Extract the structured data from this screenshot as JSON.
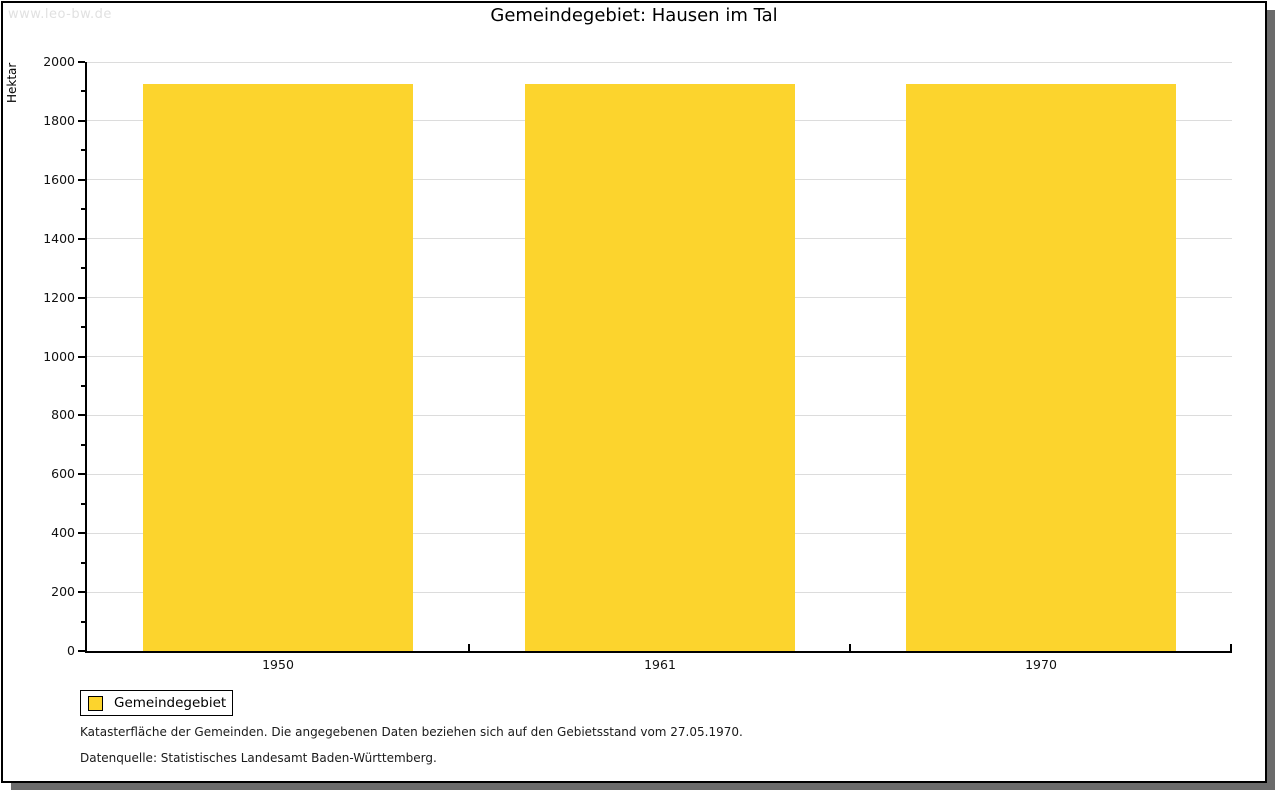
{
  "watermark": "www.leo-bw.de",
  "title": "Gemeindegebiet: Hausen im Tal",
  "chart_data": {
    "type": "bar",
    "title": "Gemeindegebiet: Hausen im Tal",
    "categories": [
      "1950",
      "1961",
      "1970"
    ],
    "series": [
      {
        "name": "Gemeindegebiet",
        "values": [
          1925,
          1925,
          1925
        ]
      }
    ],
    "xlabel": "",
    "ylabel": "Hektar",
    "ylim": [
      0,
      2000
    ],
    "ytick_interval": 200,
    "minor_tick_interval": 100,
    "grid": true,
    "legend_position": "bottom-left",
    "bar_color": "#fcd42d",
    "gridline_color": "#dcdcdc",
    "axis_color": "#000000"
  },
  "legend": {
    "items": [
      {
        "label": "Gemeindegebiet",
        "color": "#fcd42d"
      }
    ]
  },
  "footnotes": [
    "Katasterfläche der Gemeinden. Die angegebenen Daten beziehen sich auf den Gebietsstand vom 27.05.1970.",
    "Datenquelle: Statistisches Landesamt Baden-Württemberg."
  ]
}
